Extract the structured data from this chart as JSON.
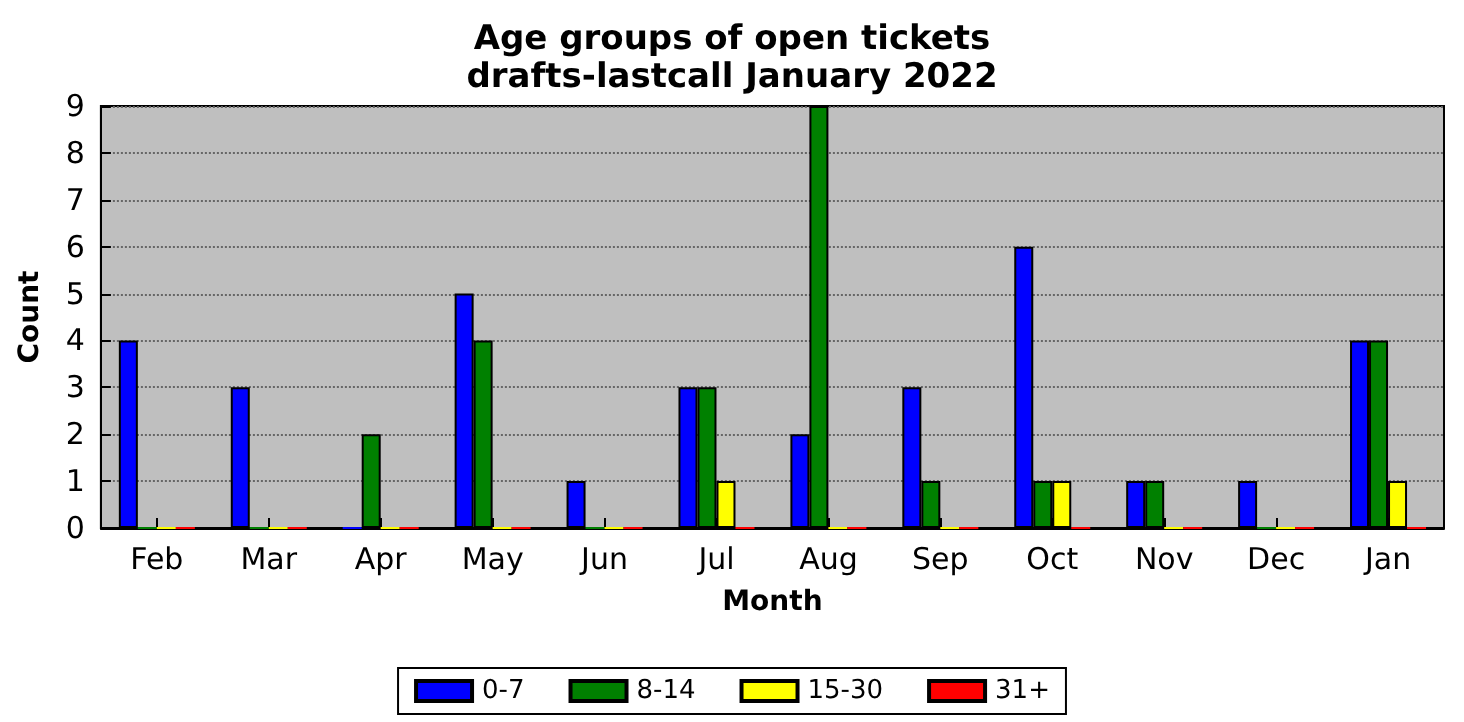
{
  "chart_data": {
    "type": "bar",
    "title": "Age groups of open tickets",
    "subtitle": "drafts-lastcall January 2022",
    "xlabel": "Month",
    "ylabel": "Count",
    "categories": [
      "Feb",
      "Mar",
      "Apr",
      "May",
      "Jun",
      "Jul",
      "Aug",
      "Sep",
      "Oct",
      "Nov",
      "Dec",
      "Jan"
    ],
    "series": [
      {
        "name": "0-7",
        "color": "#0000ff",
        "values": [
          4,
          3,
          0,
          5,
          1,
          3,
          2,
          3,
          6,
          1,
          1,
          4
        ]
      },
      {
        "name": "8-14",
        "color": "#008000",
        "values": [
          0,
          0,
          2,
          4,
          0,
          3,
          9,
          1,
          1,
          1,
          0,
          4
        ]
      },
      {
        "name": "15-30",
        "color": "#ffff00",
        "values": [
          0,
          0,
          0,
          0,
          0,
          1,
          0,
          0,
          1,
          0,
          0,
          1
        ]
      },
      {
        "name": "31+",
        "color": "#ff0000",
        "values": [
          0,
          0,
          0,
          0,
          0,
          0,
          0,
          0,
          0,
          0,
          0,
          0
        ]
      }
    ],
    "ylim": [
      0,
      9
    ],
    "yticks": [
      0,
      1,
      2,
      3,
      4,
      5,
      6,
      7,
      8,
      9
    ],
    "grid": "y",
    "legend": "bottom"
  }
}
